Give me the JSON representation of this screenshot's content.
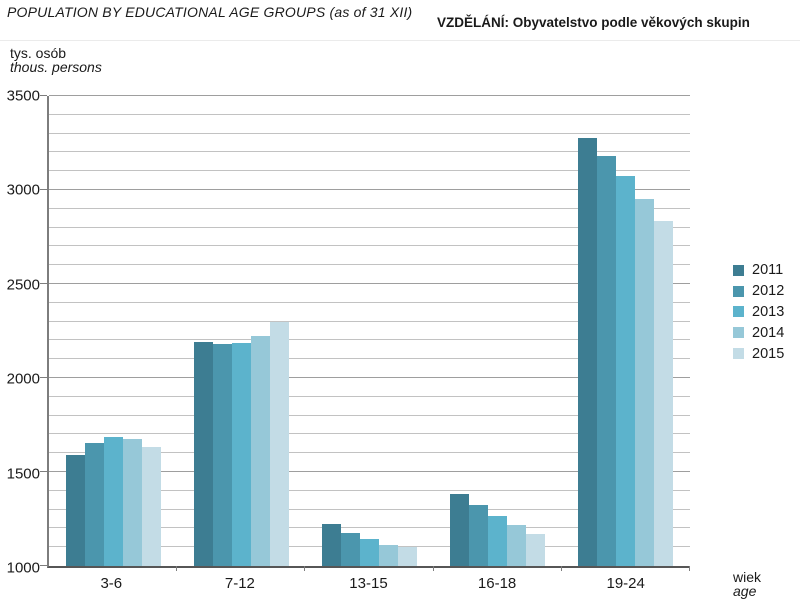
{
  "header": {
    "title_en": "POPULATION BY EDUCATIONAL AGE GROUPS (as of 31 XII)",
    "title_cs": "VZDĚLÁNÍ: Obyvatelstvo podle věkových skupin"
  },
  "axis_unit": {
    "line1": "tys. osób",
    "line2": "thous. persons"
  },
  "x_axis_label": {
    "line1": "wiek",
    "line2": "age"
  },
  "chart_data": {
    "type": "bar",
    "title": "POPULATION BY EDUCATIONAL AGE GROUPS (as of 31 XII)",
    "title_secondary": "VZDĚLÁNÍ: Obyvatelstvo podle věkových skupin",
    "ylabel": "tys. osób / thous. persons",
    "xlabel": "wiek / age",
    "categories": [
      "3-6",
      "7-12",
      "13-15",
      "16-18",
      "19-24"
    ],
    "series": [
      {
        "name": "2011",
        "color": "#3d7d92",
        "values": [
          1590,
          2193,
          1222,
          1381,
          3275
        ]
      },
      {
        "name": "2012",
        "color": "#4b96ad",
        "values": [
          1652,
          2180,
          1176,
          1322,
          3180
        ]
      },
      {
        "name": "2013",
        "color": "#5cb3cc",
        "values": [
          1686,
          2184,
          1143,
          1264,
          3075
        ]
      },
      {
        "name": "2014",
        "color": "#96c8d8",
        "values": [
          1676,
          2222,
          1114,
          1216,
          2950
        ]
      },
      {
        "name": "2015",
        "color": "#c3dce6",
        "values": [
          1633,
          2296,
          1101,
          1171,
          2833
        ]
      }
    ],
    "ylim": [
      1000,
      3500
    ],
    "yticks": [
      1000,
      1500,
      2000,
      2500,
      3000,
      3500
    ],
    "ytick_step": 500,
    "grid_step": 100,
    "grid": true,
    "legend_position": "right"
  }
}
